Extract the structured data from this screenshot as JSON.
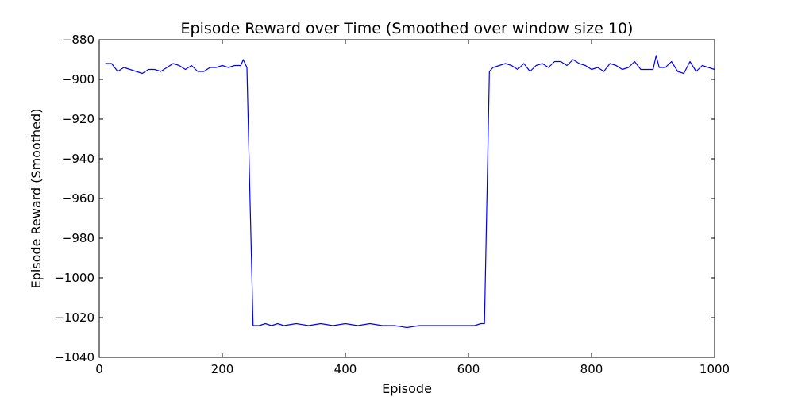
{
  "chart_data": {
    "type": "line",
    "title": "Episode Reward over Time (Smoothed over window size 10)",
    "xlabel": "Episode",
    "ylabel": "Episode Reward (Smoothed)",
    "xlim": [
      0,
      1000
    ],
    "ylim": [
      -1040,
      -880
    ],
    "xticks": [
      0,
      200,
      400,
      600,
      800,
      1000
    ],
    "yticks": [
      -880,
      -900,
      -920,
      -940,
      -960,
      -980,
      -1000,
      -1020,
      -1040
    ],
    "xtick_labels": [
      "0",
      "200",
      "400",
      "600",
      "800",
      "1000"
    ],
    "ytick_labels": [
      "−880",
      "−900",
      "−920",
      "−940",
      "−960",
      "−980",
      "−1000",
      "−1020",
      "−1040"
    ],
    "grid": false,
    "legend": "none",
    "series_color": "#0000ff",
    "series": [
      {
        "x": [
          10,
          20,
          30,
          40,
          50,
          60,
          70,
          80,
          90,
          100,
          110,
          120,
          130,
          140,
          150,
          160,
          170,
          180,
          190,
          200,
          210,
          220,
          230,
          234,
          240,
          245,
          250,
          260,
          270,
          280,
          290,
          300,
          320,
          340,
          360,
          380,
          400,
          420,
          440,
          460,
          480,
          500,
          520,
          540,
          560,
          580,
          600,
          610,
          620,
          626,
          630,
          634,
          640,
          650,
          660,
          670,
          680,
          690,
          700,
          710,
          720,
          730,
          740,
          750,
          760,
          770,
          780,
          790,
          800,
          810,
          820,
          830,
          840,
          850,
          860,
          870,
          880,
          890,
          900,
          905,
          910,
          920,
          930,
          940,
          950,
          960,
          970,
          980,
          990,
          1000
        ],
        "values": [
          -892,
          -892,
          -896,
          -894,
          -895,
          -896,
          -897,
          -895,
          -895,
          -896,
          -894,
          -892,
          -893,
          -895,
          -893,
          -896,
          -896,
          -894,
          -894,
          -893,
          -894,
          -893,
          -893,
          -890,
          -894,
          -960,
          -1024,
          -1024,
          -1023,
          -1024,
          -1023,
          -1024,
          -1023,
          -1024,
          -1023,
          -1024,
          -1023,
          -1024,
          -1023,
          -1024,
          -1024,
          -1025,
          -1024,
          -1024,
          -1024,
          -1024,
          -1024,
          -1024,
          -1023,
          -1023,
          -960,
          -896,
          -894,
          -893,
          -892,
          -893,
          -895,
          -892,
          -896,
          -893,
          -892,
          -894,
          -891,
          -891,
          -893,
          -890,
          -892,
          -893,
          -895,
          -894,
          -896,
          -892,
          -893,
          -895,
          -894,
          -891,
          -895,
          -895,
          -895,
          -888,
          -894,
          -894,
          -891,
          -896,
          -897,
          -891,
          -896,
          -893,
          -894,
          -895
        ]
      }
    ]
  }
}
